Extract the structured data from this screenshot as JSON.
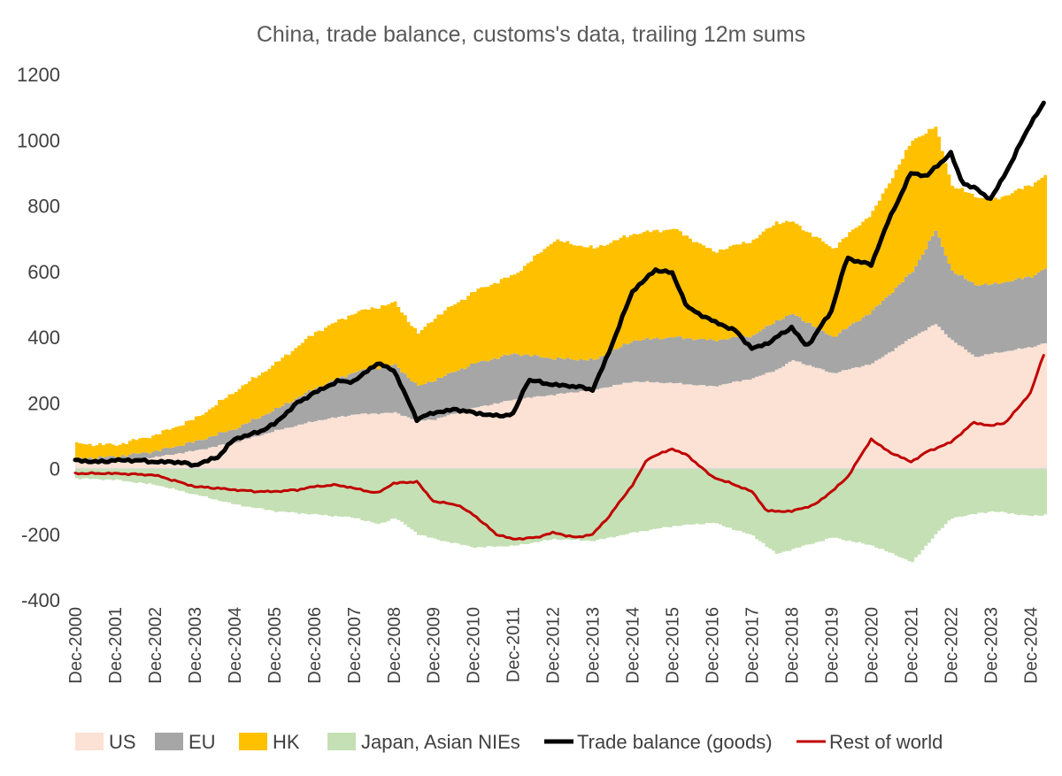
{
  "chart_data": {
    "type": "area",
    "title": "China, trade balance, customs's data, trailing 12m sums",
    "xlabel": "",
    "ylabel": "",
    "ylim": [
      -400,
      1200
    ],
    "yticks": [
      1200,
      1000,
      800,
      600,
      400,
      200,
      0,
      -200,
      -400
    ],
    "x_tick_labels": [
      "Dec-2000",
      "Dec-2001",
      "Dec-2002",
      "Dec-2003",
      "Dec-2004",
      "Dec-2005",
      "Dec-2006",
      "Dec-2007",
      "Dec-2008",
      "Dec-2009",
      "Dec-2010",
      "Dec-2011",
      "Dec-2012",
      "Dec-2013",
      "Dec-2014",
      "Dec-2015",
      "Dec-2016",
      "Dec-2017",
      "Dec-2018",
      "Dec-2019",
      "Dec-2020",
      "Dec-2021",
      "Dec-2022",
      "Dec-2023",
      "Dec-2024"
    ],
    "x_range": [
      2000.917,
      2025.333
    ],
    "legend_position": "bottom",
    "colors": {
      "US": "#fbe2d5",
      "EU": "#a6a6a6",
      "HK": "#ffc000",
      "Japan, Asian NIEs": "#c5e0b4",
      "Trade balance (goods)": "#000000",
      "Rest of world": "#c00000"
    },
    "legend": [
      {
        "label": "US",
        "kind": "area",
        "key": "US"
      },
      {
        "label": "EU",
        "kind": "area",
        "key": "EU"
      },
      {
        "label": "HK",
        "kind": "area",
        "key": "HK"
      },
      {
        "label": "Japan, Asian NIEs",
        "kind": "area",
        "key": "Japan, Asian NIEs"
      },
      {
        "label": "Trade balance (goods)",
        "kind": "line",
        "key": "Trade balance (goods)"
      },
      {
        "label": "Rest of world",
        "kind": "line",
        "key": "Rest of world"
      }
    ],
    "series": [
      {
        "name": "US",
        "kind": "stacked_area_positive",
        "x": [
          2000.92,
          2001.92,
          2002.92,
          2003.92,
          2004.92,
          2005.92,
          2006.92,
          2007.92,
          2008.92,
          2009.5,
          2009.92,
          2010.92,
          2011.92,
          2012.92,
          2013.92,
          2014.92,
          2015.92,
          2016.92,
          2017.92,
          2018.5,
          2018.92,
          2019.92,
          2020.92,
          2021.92,
          2022.5,
          2022.92,
          2023.5,
          2023.92,
          2024.92,
          2025.33
        ],
        "values": [
          20,
          25,
          35,
          55,
          80,
          115,
          145,
          165,
          170,
          145,
          150,
          185,
          210,
          225,
          240,
          265,
          260,
          250,
          275,
          300,
          330,
          290,
          320,
          400,
          440,
          390,
          340,
          350,
          370,
          385
        ]
      },
      {
        "name": "EU",
        "kind": "stacked_area_positive",
        "x": [
          2000.92,
          2001.92,
          2002.92,
          2003.92,
          2004.92,
          2005.92,
          2006.92,
          2007.92,
          2008.92,
          2009.5,
          2009.92,
          2010.92,
          2011.92,
          2012.92,
          2013.92,
          2014.92,
          2015.92,
          2016.92,
          2017.92,
          2018.5,
          2018.92,
          2019.92,
          2020.92,
          2021.92,
          2022.5,
          2022.92,
          2023.5,
          2023.92,
          2024.92,
          2025.33
        ],
        "values": [
          10,
          12,
          18,
          28,
          42,
          65,
          100,
          130,
          145,
          105,
          120,
          135,
          140,
          110,
          90,
          125,
          140,
          140,
          130,
          150,
          140,
          110,
          160,
          200,
          285,
          210,
          220,
          210,
          215,
          230
        ]
      },
      {
        "name": "HK",
        "kind": "stacked_area_positive",
        "x": [
          2000.92,
          2001.92,
          2002.92,
          2003.92,
          2004.92,
          2005.92,
          2006.92,
          2007.92,
          2008.92,
          2009.5,
          2009.92,
          2010.92,
          2011.92,
          2012.92,
          2013.92,
          2014.92,
          2015.92,
          2016.92,
          2017.92,
          2018.5,
          2018.92,
          2019.92,
          2020.92,
          2021.92,
          2022.5,
          2022.92,
          2023.5,
          2023.92,
          2024.92,
          2025.33
        ],
        "values": [
          45,
          35,
          50,
          70,
          115,
          140,
          170,
          180,
          190,
          160,
          190,
          220,
          240,
          360,
          340,
          325,
          330,
          270,
          290,
          300,
          280,
          270,
          300,
          400,
          315,
          260,
          270,
          255,
          280,
          285
        ]
      },
      {
        "name": "Japan, Asian NIEs",
        "kind": "area_negative",
        "x": [
          2000.92,
          2001.92,
          2002.92,
          2003.92,
          2004.92,
          2005.92,
          2006.92,
          2007.92,
          2008.5,
          2008.92,
          2009.5,
          2009.92,
          2010.92,
          2011.92,
          2012.92,
          2013.92,
          2014.92,
          2015.92,
          2016.92,
          2017.92,
          2018.5,
          2018.92,
          2019.92,
          2020.92,
          2021.92,
          2022.5,
          2022.92,
          2023.92,
          2024.92,
          2025.33
        ],
        "values": [
          -30,
          -35,
          -50,
          -80,
          -110,
          -130,
          -140,
          -150,
          -170,
          -150,
          -200,
          -215,
          -240,
          -235,
          -215,
          -220,
          -195,
          -175,
          -165,
          -205,
          -260,
          -245,
          -210,
          -235,
          -285,
          -200,
          -150,
          -130,
          -145,
          -140
        ]
      },
      {
        "name": "Trade balance (goods)",
        "kind": "line",
        "x": [
          2000.92,
          2001.5,
          2001.92,
          2002.5,
          2002.92,
          2003.5,
          2003.92,
          2004.5,
          2004.92,
          2005.5,
          2005.92,
          2006.5,
          2006.92,
          2007.5,
          2007.92,
          2008.5,
          2008.92,
          2009.5,
          2009.92,
          2010.5,
          2010.92,
          2011.5,
          2011.92,
          2012.3,
          2012.92,
          2013.5,
          2013.92,
          2014.3,
          2014.92,
          2015.5,
          2015.92,
          2016.3,
          2016.92,
          2017.5,
          2017.92,
          2018.3,
          2018.92,
          2019.3,
          2019.92,
          2020.3,
          2020.92,
          2021.3,
          2021.92,
          2022.3,
          2022.92,
          2023.2,
          2023.5,
          2023.92,
          2024.3,
          2024.92,
          2025.33
        ],
        "values": [
          25,
          20,
          25,
          25,
          20,
          20,
          10,
          35,
          90,
          110,
          135,
          200,
          230,
          265,
          265,
          320,
          300,
          150,
          170,
          180,
          170,
          160,
          165,
          270,
          255,
          250,
          240,
          345,
          540,
          605,
          595,
          490,
          450,
          420,
          365,
          380,
          430,
          370,
          480,
          640,
          620,
          740,
          900,
          890,
          960,
          870,
          855,
          820,
          900,
          1050,
          1125
        ]
      },
      {
        "name": "Rest of world",
        "kind": "line",
        "x": [
          2000.92,
          2001.92,
          2002.92,
          2003.5,
          2003.92,
          2004.5,
          2004.92,
          2005.5,
          2005.92,
          2006.5,
          2006.92,
          2007.5,
          2007.92,
          2008.5,
          2008.92,
          2009.5,
          2009.92,
          2010.5,
          2010.92,
          2011.5,
          2011.92,
          2012.5,
          2012.92,
          2013.5,
          2013.92,
          2014.3,
          2014.92,
          2015.3,
          2015.92,
          2016.3,
          2016.92,
          2017.5,
          2017.92,
          2018.3,
          2018.92,
          2019.5,
          2019.92,
          2020.3,
          2020.92,
          2021.3,
          2021.92,
          2022.3,
          2022.92,
          2023.3,
          2023.5,
          2023.92,
          2024.3,
          2024.92,
          2025.33
        ],
        "values": [
          -15,
          -15,
          -20,
          -40,
          -55,
          -60,
          -65,
          -70,
          -70,
          -65,
          -55,
          -50,
          -60,
          -75,
          -45,
          -40,
          -100,
          -110,
          -140,
          -200,
          -215,
          -210,
          -195,
          -210,
          -200,
          -150,
          -50,
          30,
          60,
          40,
          -25,
          -50,
          -70,
          -130,
          -130,
          -110,
          -70,
          -30,
          90,
          55,
          20,
          50,
          80,
          120,
          140,
          130,
          140,
          230,
          375
        ]
      }
    ]
  }
}
